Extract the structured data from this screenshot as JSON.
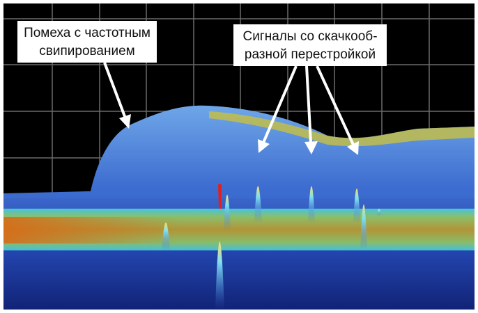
{
  "callouts": [
    {
      "lines": [
        "Помеха с частотным",
        "свипированием"
      ]
    },
    {
      "lines": [
        "Сигналы со скачкооб-",
        "разной перестройкой"
      ]
    }
  ]
}
